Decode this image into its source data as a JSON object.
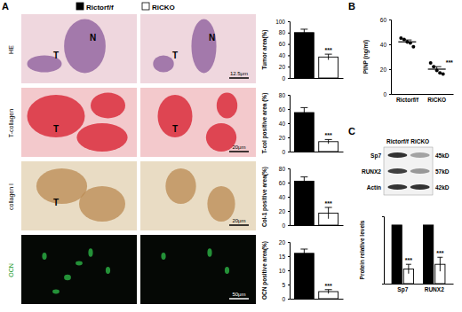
{
  "chart_data": [
    {
      "type": "bar",
      "y_label": "Tumor area(%)",
      "categories": [
        null,
        null
      ],
      "values": [
        80,
        37
      ],
      "errors": [
        6,
        5
      ],
      "colors": [
        "#000000",
        "#ffffff"
      ],
      "notes": [
        null,
        "***"
      ],
      "ylim": [
        0,
        100
      ],
      "yticks": [
        0,
        20,
        40,
        60,
        80,
        100
      ],
      "tick_labels": "y"
    },
    {
      "type": "bar",
      "y_label": "T-col positive area (%)",
      "categories": [
        null,
        null
      ],
      "values": [
        55,
        14
      ],
      "errors": [
        7,
        3
      ],
      "colors": [
        "#000000",
        "#ffffff"
      ],
      "notes": [
        null,
        "***"
      ],
      "ylim": [
        0,
        80
      ],
      "yticks": [
        0,
        20,
        40,
        60,
        80
      ],
      "tick_labels": "y"
    },
    {
      "type": "bar",
      "y_label": "Col-1 positive area(%)",
      "categories": [
        null,
        null
      ],
      "values": [
        62,
        17
      ],
      "errors": [
        6,
        8
      ],
      "colors": [
        "#000000",
        "#ffffff"
      ],
      "notes": [
        null,
        "***"
      ],
      "ylim": [
        0,
        80
      ],
      "yticks": [
        0,
        20,
        40,
        60,
        80
      ],
      "tick_labels": "y"
    },
    {
      "type": "bar",
      "y_label": "OCN positive area(%)",
      "categories": [
        null,
        null
      ],
      "values": [
        16,
        2.5
      ],
      "errors": [
        1.5,
        0.7
      ],
      "colors": [
        "#000000",
        "#ffffff"
      ],
      "notes": [
        null,
        "***"
      ],
      "ylim": [
        0,
        20
      ],
      "yticks": [
        0,
        5,
        10,
        15,
        20
      ],
      "tick_labels": "y"
    },
    {
      "type": "scatter",
      "y_label": "PINP (ng/ml)",
      "categories": [
        "Rictorf/f",
        "RiCKO"
      ],
      "points": [
        [
          45,
          44,
          42,
          41,
          38
        ],
        [
          25,
          22,
          19,
          17,
          16
        ]
      ],
      "values": [
        42,
        20
      ],
      "errors": [
        1.5,
        2
      ],
      "notes": [
        null,
        "***"
      ],
      "ylim": [
        0,
        60
      ],
      "yticks": [
        0,
        20,
        40,
        60
      ],
      "marker": "circle",
      "color": "#000000"
    },
    {
      "type": "bar",
      "y_label": "Protein relative levels",
      "categories": [
        "Sp7",
        "RUNX2"
      ],
      "series": [
        {
          "color": "#000000",
          "values": [
            1,
            1
          ]
        },
        {
          "color": "#ffffff",
          "values": [
            0.25,
            0.33
          ],
          "errors": [
            0.08,
            0.12
          ],
          "notes": [
            "***",
            "***"
          ]
        }
      ],
      "ylim": [
        0,
        1.15
      ],
      "tick_labels": "x"
    }
  ],
  "figure": {
    "panel_labels": [
      "A",
      "B",
      "C"
    ],
    "legend": [
      {
        "label": "Rictorf/f",
        "color": "#000000"
      },
      {
        "label": "RiCKO",
        "color": "#ffffff"
      }
    ],
    "row_labels": [
      "HE",
      "T-collagen",
      "collagen I",
      "OCN"
    ],
    "image_marks": [
      [
        [
          "T",
          "N"
        ],
        [
          "T",
          "N"
        ]
      ],
      [
        [
          "T"
        ],
        [
          "T"
        ]
      ],
      [
        [
          "T"
        ],
        []
      ],
      [
        [],
        []
      ]
    ],
    "scale_bars": [
      "12.5μm",
      "20μm",
      "20μm",
      "50μm"
    ],
    "blot": {
      "columns": [
        "Rictorf/f",
        "RiCKO"
      ],
      "rows": [
        {
          "name": "Sp7",
          "size": "45kD"
        },
        {
          "name": "RUNX2",
          "size": "57kD"
        },
        {
          "name": "Actin",
          "size": "42kD"
        }
      ]
    }
  }
}
